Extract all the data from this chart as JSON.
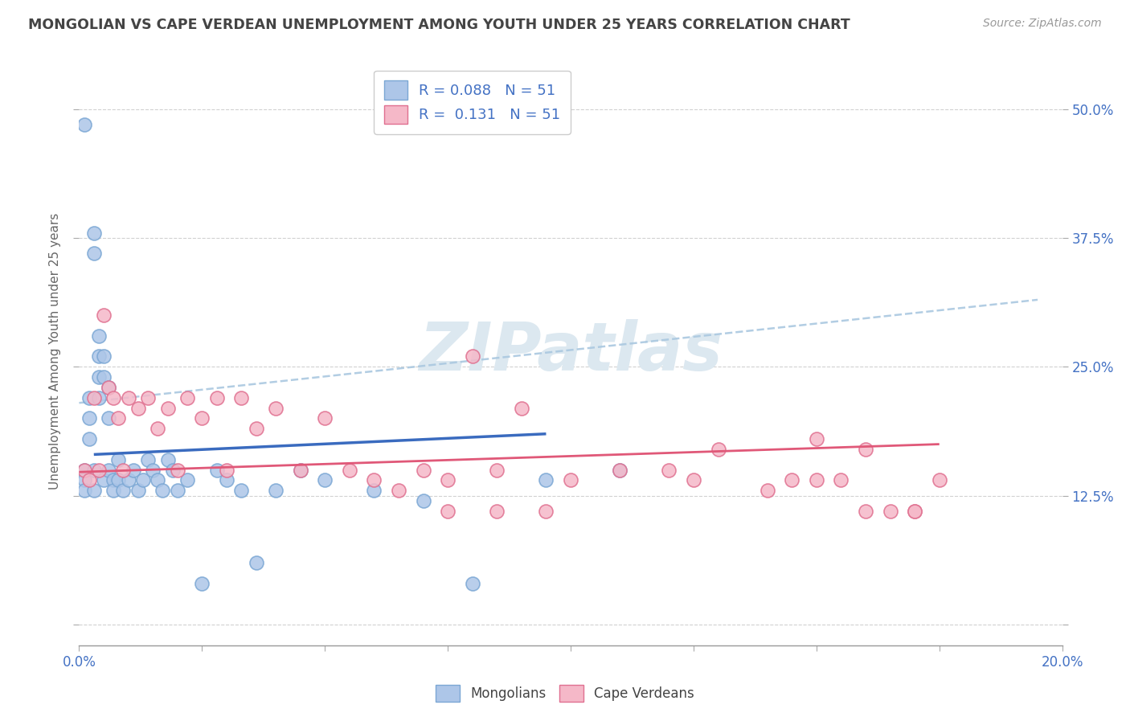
{
  "title": "MONGOLIAN VS CAPE VERDEAN UNEMPLOYMENT AMONG YOUTH UNDER 25 YEARS CORRELATION CHART",
  "source": "Source: ZipAtlas.com",
  "ylabel": "Unemployment Among Youth under 25 years",
  "xlim": [
    0.0,
    0.2
  ],
  "ylim": [
    -0.02,
    0.55
  ],
  "yticks": [
    0.0,
    0.125,
    0.25,
    0.375,
    0.5
  ],
  "ytick_labels_right": [
    "",
    "12.5%",
    "25.0%",
    "37.5%",
    "50.0%"
  ],
  "xticks": [
    0.0,
    0.025,
    0.05,
    0.075,
    0.1,
    0.125,
    0.15,
    0.175,
    0.2
  ],
  "mongolian_r": "0.088",
  "mongolian_n": "51",
  "capeverdean_r": "0.131",
  "capeverdean_n": "51",
  "mongolian_color": "#adc6e8",
  "mongolian_edge_color": "#7ba7d4",
  "mongolian_line_color": "#3a6bbf",
  "capeverdean_color": "#f5b8c8",
  "capeverdean_edge_color": "#e07090",
  "capeverdean_line_color": "#e05878",
  "dash_line_color": "#aac8e0",
  "background_color": "#ffffff",
  "watermark_text": "ZIPatlas",
  "watermark_color": "#dce8f0",
  "legend_edge_color": "#cccccc",
  "tick_color": "#aaaaaa",
  "label_color": "#4472c4",
  "title_color": "#444444",
  "ylabel_color": "#666666",
  "mongolian_x": [
    0.001,
    0.001,
    0.001,
    0.001,
    0.002,
    0.002,
    0.002,
    0.003,
    0.003,
    0.003,
    0.003,
    0.004,
    0.004,
    0.004,
    0.004,
    0.005,
    0.005,
    0.005,
    0.006,
    0.006,
    0.006,
    0.007,
    0.007,
    0.008,
    0.008,
    0.009,
    0.01,
    0.011,
    0.012,
    0.013,
    0.014,
    0.015,
    0.016,
    0.017,
    0.018,
    0.019,
    0.02,
    0.022,
    0.025,
    0.028,
    0.03,
    0.033,
    0.036,
    0.04,
    0.045,
    0.05,
    0.06,
    0.07,
    0.08,
    0.095,
    0.11
  ],
  "mongolian_y": [
    0.485,
    0.15,
    0.14,
    0.13,
    0.22,
    0.2,
    0.18,
    0.38,
    0.36,
    0.15,
    0.13,
    0.28,
    0.26,
    0.24,
    0.22,
    0.26,
    0.24,
    0.14,
    0.23,
    0.2,
    0.15,
    0.14,
    0.13,
    0.16,
    0.14,
    0.13,
    0.14,
    0.15,
    0.13,
    0.14,
    0.16,
    0.15,
    0.14,
    0.13,
    0.16,
    0.15,
    0.13,
    0.14,
    0.04,
    0.15,
    0.14,
    0.13,
    0.06,
    0.13,
    0.15,
    0.14,
    0.13,
    0.12,
    0.04,
    0.14,
    0.15
  ],
  "capeverdean_x": [
    0.001,
    0.002,
    0.003,
    0.004,
    0.005,
    0.006,
    0.007,
    0.008,
    0.009,
    0.01,
    0.012,
    0.014,
    0.016,
    0.018,
    0.02,
    0.022,
    0.025,
    0.028,
    0.03,
    0.033,
    0.036,
    0.04,
    0.045,
    0.05,
    0.055,
    0.06,
    0.07,
    0.075,
    0.08,
    0.085,
    0.09,
    0.1,
    0.11,
    0.12,
    0.125,
    0.13,
    0.14,
    0.145,
    0.15,
    0.155,
    0.16,
    0.165,
    0.17,
    0.175,
    0.15,
    0.16,
    0.17,
    0.065,
    0.075,
    0.085,
    0.095
  ],
  "capeverdean_y": [
    0.15,
    0.14,
    0.22,
    0.15,
    0.3,
    0.23,
    0.22,
    0.2,
    0.15,
    0.22,
    0.21,
    0.22,
    0.19,
    0.21,
    0.15,
    0.22,
    0.2,
    0.22,
    0.15,
    0.22,
    0.19,
    0.21,
    0.15,
    0.2,
    0.15,
    0.14,
    0.15,
    0.14,
    0.26,
    0.15,
    0.21,
    0.14,
    0.15,
    0.15,
    0.14,
    0.17,
    0.13,
    0.14,
    0.18,
    0.14,
    0.17,
    0.11,
    0.11,
    0.14,
    0.14,
    0.11,
    0.11,
    0.13,
    0.11,
    0.11,
    0.11
  ],
  "mongo_line_x": [
    0.003,
    0.095
  ],
  "mongo_line_y": [
    0.165,
    0.185
  ],
  "cv_line_x": [
    0.0,
    0.175
  ],
  "cv_line_y": [
    0.148,
    0.175
  ],
  "dash_line_x": [
    0.0,
    0.195
  ],
  "dash_line_y": [
    0.215,
    0.315
  ]
}
